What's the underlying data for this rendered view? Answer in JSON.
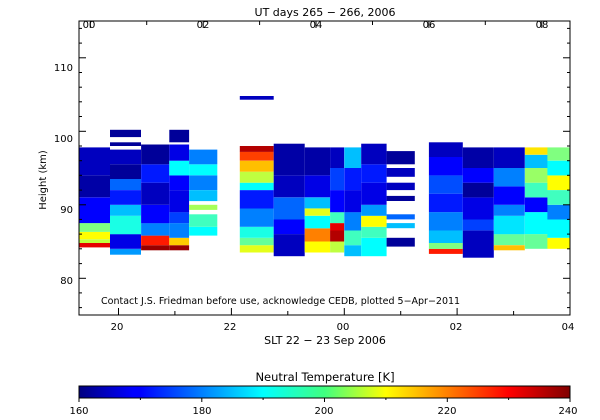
{
  "chart_data": {
    "type": "heatmap",
    "top_axis_title": "UT days 265 − 266, 2006",
    "top_ticks": [
      "00",
      "02",
      "04",
      "06",
      "08"
    ],
    "bottom_axis_title": "SLT 22 − 23 Sep 2006",
    "bottom_ticks": [
      "20",
      "22",
      "00",
      "02",
      "04"
    ],
    "ylabel": "Height (km)",
    "yticks": [
      80,
      90,
      100,
      110
    ],
    "ylim": [
      75,
      115
    ],
    "xlim_slt": [
      19.3,
      28.0
    ],
    "credit": "Contact J.S. Friedman before use, acknowledge CEDB, plotted 5−Apr−2011",
    "colorbar": {
      "title": "Neutral Temperature [K]",
      "ticks": [
        "160",
        "180",
        "200",
        "220",
        "240"
      ],
      "range": [
        160,
        240
      ],
      "colormap": "jet"
    },
    "columns": [
      {
        "slt": [
          19.3,
          19.85
        ],
        "cells": [
          [
            84.2,
            84.8,
            232
          ],
          [
            84.8,
            85.3,
            205
          ],
          [
            85.3,
            86.3,
            210
          ],
          [
            86.3,
            87.5,
            200
          ],
          [
            87.5,
            91.0,
            170
          ],
          [
            91.0,
            94.0,
            163
          ],
          [
            94.0,
            97.8,
            165
          ]
        ]
      },
      {
        "slt": [
          19.85,
          20.4
        ],
        "cells": [
          [
            83.2,
            84.0,
            182
          ],
          [
            84.0,
            86.0,
            168
          ],
          [
            86.0,
            88.5,
            192
          ],
          [
            88.5,
            90.0,
            185
          ],
          [
            90.0,
            92.0,
            172
          ],
          [
            92.0,
            93.5,
            178
          ],
          [
            93.5,
            95.5,
            162
          ],
          [
            95.5,
            97.5,
            165
          ],
          [
            98.0,
            98.5,
            162
          ],
          [
            99.2,
            100.2,
            162
          ]
        ]
      },
      {
        "slt": [
          20.4,
          20.9
        ],
        "cells": [
          [
            83.8,
            84.5,
            238
          ],
          [
            84.5,
            85.8,
            228
          ],
          [
            85.8,
            87.5,
            180
          ],
          [
            87.5,
            90.0,
            170
          ],
          [
            90.0,
            93.0,
            165
          ],
          [
            93.0,
            95.5,
            172
          ],
          [
            95.5,
            98.2,
            162
          ]
        ]
      },
      {
        "slt": [
          20.9,
          21.25
        ],
        "cells": [
          [
            83.8,
            84.5,
            238
          ],
          [
            84.5,
            85.5,
            214
          ],
          [
            85.5,
            87.5,
            180
          ],
          [
            87.5,
            89.0,
            175
          ],
          [
            89.0,
            92.0,
            168
          ],
          [
            92.0,
            94.0,
            170
          ],
          [
            94.0,
            96.0,
            190
          ],
          [
            96.0,
            98.2,
            168
          ],
          [
            98.5,
            100.2,
            162
          ]
        ]
      },
      {
        "slt": [
          21.25,
          21.75
        ],
        "cells": [
          [
            85.8,
            87.0,
            190
          ],
          [
            87.0,
            88.7,
            195
          ],
          [
            89.3,
            90.0,
            203
          ],
          [
            90.5,
            92.0,
            185
          ],
          [
            92.0,
            94.0,
            180
          ],
          [
            94.0,
            95.5,
            190
          ],
          [
            95.5,
            97.5,
            180
          ]
        ]
      },
      {
        "slt": [
          22.15,
          22.75
        ],
        "cells": [
          [
            83.5,
            84.5,
            208
          ],
          [
            84.5,
            85.5,
            198
          ],
          [
            85.5,
            87.0,
            192
          ],
          [
            87.0,
            89.5,
            180
          ],
          [
            89.5,
            92.0,
            172
          ],
          [
            92.0,
            93.0,
            190
          ],
          [
            93.0,
            94.5,
            205
          ],
          [
            94.5,
            96.0,
            215
          ],
          [
            96.0,
            97.2,
            225
          ],
          [
            97.2,
            98.0,
            236
          ]
        ]
      },
      {
        "slt": [
          22.15,
          22.75
        ],
        "cells": [
          [
            104.3,
            104.8,
            165
          ]
        ]
      },
      {
        "slt": [
          22.75,
          23.3
        ],
        "cells": [
          [
            83.0,
            86.0,
            165
          ],
          [
            86.0,
            88.0,
            170
          ],
          [
            88.0,
            91.0,
            178
          ],
          [
            91.0,
            94.0,
            165
          ],
          [
            94.0,
            98.3,
            163
          ]
        ]
      },
      {
        "slt": [
          23.3,
          23.75
        ],
        "cells": [
          [
            83.5,
            85.0,
            210
          ],
          [
            85.0,
            86.8,
            220
          ],
          [
            86.8,
            88.5,
            190
          ],
          [
            88.5,
            89.5,
            208
          ],
          [
            89.5,
            91.0,
            185
          ],
          [
            91.0,
            94.0,
            168
          ],
          [
            94.0,
            97.8,
            163
          ]
        ]
      },
      {
        "slt": [
          23.75,
          24.0
        ],
        "cells": [
          [
            83.5,
            85.0,
            205
          ],
          [
            85.0,
            86.5,
            236
          ],
          [
            86.5,
            87.5,
            232
          ],
          [
            87.5,
            89.0,
            195
          ],
          [
            89.0,
            92.0,
            170
          ],
          [
            92.0,
            95.0,
            175
          ],
          [
            95.0,
            97.8,
            165
          ]
        ]
      },
      {
        "slt": [
          24.0,
          24.3
        ],
        "cells": [
          [
            83.0,
            84.5,
            185
          ],
          [
            84.5,
            86.5,
            195
          ],
          [
            86.5,
            89.0,
            180
          ],
          [
            89.0,
            92.0,
            168
          ],
          [
            92.0,
            95.0,
            172
          ],
          [
            95.0,
            97.8,
            185
          ]
        ]
      },
      {
        "slt": [
          24.3,
          24.75
        ],
        "cells": [
          [
            83.0,
            85.5,
            190
          ],
          [
            85.5,
            87.0,
            195
          ],
          [
            87.0,
            88.5,
            210
          ],
          [
            88.5,
            90.0,
            182
          ],
          [
            90.0,
            93.0,
            168
          ],
          [
            93.0,
            95.5,
            172
          ],
          [
            95.5,
            98.3,
            165
          ]
        ]
      },
      {
        "slt": [
          24.75,
          25.25
        ],
        "cells": [
          [
            84.3,
            85.5,
            162
          ],
          [
            86.8,
            87.5,
            185
          ],
          [
            88.0,
            88.7,
            178
          ],
          [
            90.5,
            91.2,
            162
          ],
          [
            92.0,
            93.0,
            165
          ],
          [
            93.8,
            95.0,
            165
          ],
          [
            95.5,
            97.3,
            162
          ]
        ]
      },
      {
        "slt": [
          25.5,
          26.1
        ],
        "cells": [
          [
            83.3,
            84.0,
            228
          ],
          [
            84.0,
            84.8,
            200
          ],
          [
            84.8,
            86.5,
            185
          ],
          [
            86.5,
            89.0,
            180
          ],
          [
            89.0,
            91.5,
            172
          ],
          [
            91.5,
            94.0,
            176
          ],
          [
            94.0,
            96.5,
            170
          ],
          [
            96.5,
            98.5,
            165
          ]
        ]
      },
      {
        "slt": [
          26.1,
          26.65
        ],
        "cells": [
          [
            82.8,
            86.5,
            165
          ],
          [
            86.5,
            88.0,
            175
          ],
          [
            88.0,
            91.0,
            168
          ],
          [
            91.0,
            93.0,
            162
          ],
          [
            93.0,
            95.0,
            170
          ],
          [
            95.0,
            97.8,
            163
          ]
        ]
      },
      {
        "slt": [
          26.65,
          27.2
        ],
        "cells": [
          [
            83.8,
            84.5,
            215
          ],
          [
            84.5,
            86.0,
            198
          ],
          [
            86.0,
            88.5,
            188
          ],
          [
            88.5,
            90.0,
            180
          ],
          [
            90.0,
            92.5,
            170
          ],
          [
            92.5,
            95.0,
            180
          ],
          [
            95.0,
            97.8,
            165
          ]
        ]
      },
      {
        "slt": [
          27.2,
          27.6
        ],
        "cells": [
          [
            84.0,
            86.0,
            198
          ],
          [
            86.0,
            89.0,
            190
          ],
          [
            89.0,
            91.0,
            170
          ],
          [
            91.0,
            93.0,
            195
          ],
          [
            93.0,
            95.0,
            202
          ],
          [
            95.0,
            96.8,
            185
          ],
          [
            96.8,
            97.8,
            212
          ]
        ]
      },
      {
        "slt": [
          27.6,
          28.0
        ],
        "cells": [
          [
            84.0,
            85.5,
            210
          ],
          [
            85.5,
            88.0,
            190
          ],
          [
            88.0,
            90.0,
            180
          ],
          [
            90.0,
            92.0,
            195
          ],
          [
            92.0,
            94.0,
            210
          ],
          [
            94.0,
            96.0,
            190
          ],
          [
            96.0,
            97.8,
            200
          ]
        ]
      }
    ]
  }
}
